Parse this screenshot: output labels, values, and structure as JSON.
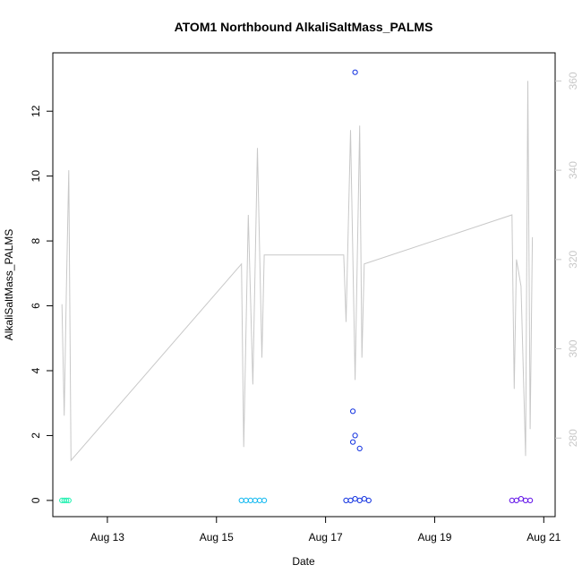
{
  "chart_data": {
    "type": "scatter",
    "title": "ATOM1 Northbound AlkaliSaltMass_PALMS",
    "xlabel": "Date",
    "ylabel": "AlkaliSaltMass_PALMS",
    "x_ticks": [
      "Aug 13",
      "Aug 15",
      "Aug 17",
      "Aug 19",
      "Aug 21"
    ],
    "y_ticks": [
      "0",
      "2",
      "4",
      "6",
      "8",
      "10",
      "12"
    ],
    "y2_ticks": [
      "280",
      "300",
      "320",
      "340",
      "360"
    ],
    "xlim": [
      "2016-08-12 00:00",
      "2016-08-21 05:00"
    ],
    "ylim": [
      -0.5,
      13.8
    ],
    "y2lim": [
      262.4,
      366.3
    ],
    "grid": false,
    "colors": {
      "axis": "#000000",
      "secondary_axis": "#c8c8c8",
      "track_line": "#c8c8c8"
    },
    "series": [
      {
        "color": "#20f0b0",
        "points": [
          [
            "2016-08-12 04:00",
            0
          ],
          [
            "2016-08-12 05:00",
            0
          ],
          [
            "2016-08-12 06:00",
            0
          ],
          [
            "2016-08-12 07:00",
            0
          ]
        ]
      },
      {
        "color": "#10b8f0",
        "points": [
          [
            "2016-08-15 11:00",
            0
          ],
          [
            "2016-08-15 13:00",
            0
          ],
          [
            "2016-08-15 15:00",
            0
          ],
          [
            "2016-08-15 17:00",
            0
          ],
          [
            "2016-08-15 19:00",
            0
          ],
          [
            "2016-08-15 21:00",
            0
          ]
        ]
      },
      {
        "color": "#1030e0",
        "points": [
          [
            "2016-08-17 09:00",
            0
          ],
          [
            "2016-08-17 11:00",
            0
          ],
          [
            "2016-08-17 13:00",
            0.05
          ],
          [
            "2016-08-17 15:00",
            0
          ],
          [
            "2016-08-17 17:00",
            0.05
          ],
          [
            "2016-08-17 19:00",
            0
          ],
          [
            "2016-08-17 12:00",
            2.75
          ],
          [
            "2016-08-17 13:00",
            2.0
          ],
          [
            "2016-08-17 12:00",
            1.8
          ],
          [
            "2016-08-17 15:00",
            1.6
          ],
          [
            "2016-08-17 13:00",
            13.2
          ]
        ]
      },
      {
        "color": "#6010e8",
        "points": [
          [
            "2016-08-20 10:00",
            0
          ],
          [
            "2016-08-20 12:00",
            0
          ],
          [
            "2016-08-20 14:00",
            0.05
          ],
          [
            "2016-08-20 16:00",
            0
          ],
          [
            "2016-08-20 18:00",
            0
          ]
        ]
      }
    ],
    "secondary_line": {
      "y_axis": "right",
      "points": [
        [
          "2016-08-12 04:00",
          310
        ],
        [
          "2016-08-12 05:00",
          285
        ],
        [
          "2016-08-12 06:00",
          314
        ],
        [
          "2016-08-12 07:00",
          340
        ],
        [
          "2016-08-12 08:00",
          275
        ],
        [
          "2016-08-15 11:00",
          319
        ],
        [
          "2016-08-15 12:00",
          278
        ],
        [
          "2016-08-15 14:00",
          330
        ],
        [
          "2016-08-15 16:00",
          292
        ],
        [
          "2016-08-15 18:00",
          345
        ],
        [
          "2016-08-15 20:00",
          298
        ],
        [
          "2016-08-15 21:00",
          321
        ],
        [
          "2016-08-17 08:00",
          321
        ],
        [
          "2016-08-17 09:00",
          306
        ],
        [
          "2016-08-17 11:00",
          349
        ],
        [
          "2016-08-17 13:00",
          293
        ],
        [
          "2016-08-17 15:00",
          350
        ],
        [
          "2016-08-17 16:00",
          298
        ],
        [
          "2016-08-17 17:00",
          319
        ],
        [
          "2016-08-20 10:00",
          330
        ],
        [
          "2016-08-20 11:00",
          291
        ],
        [
          "2016-08-20 12:00",
          320
        ],
        [
          "2016-08-20 14:00",
          314
        ],
        [
          "2016-08-20 16:00",
          276
        ],
        [
          "2016-08-20 17:00",
          360
        ],
        [
          "2016-08-20 18:00",
          282
        ],
        [
          "2016-08-20 19:00",
          325
        ]
      ]
    }
  }
}
